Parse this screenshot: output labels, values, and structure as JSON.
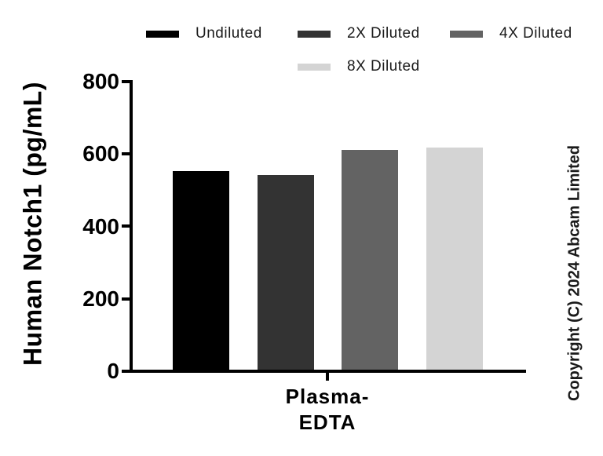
{
  "chart_data": {
    "type": "bar",
    "title": "",
    "ylabel": "Human Notch1 (pg/mL)",
    "xlabel": "",
    "ylim": [
      0,
      800
    ],
    "yticks": [
      0,
      200,
      400,
      600,
      800
    ],
    "categories": [
      "Plasma-EDTA"
    ],
    "category_label_lines": [
      "Plasma-",
      "EDTA"
    ],
    "series": [
      {
        "name": "Undiluted",
        "value": 552,
        "color": "#000000"
      },
      {
        "name": "2X Diluted",
        "value": 541,
        "color": "#333333"
      },
      {
        "name": "4X Diluted",
        "value": 611,
        "color": "#636363"
      },
      {
        "name": "8X Diluted",
        "value": 617,
        "color": "#d4d4d4"
      }
    ],
    "legend_position": "top",
    "grid": false,
    "axis_color": "#000000"
  },
  "copyright": "Copyright (C) 2024 Abcam Limited"
}
